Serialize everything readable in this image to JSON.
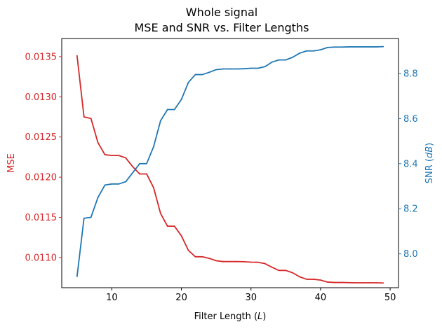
{
  "chart_data": {
    "type": "line",
    "title_lines": [
      "Whole signal",
      "MSE and SNR vs. Filter Lengths"
    ],
    "xlabel": {
      "text": "Filter Length (",
      "var": "L",
      "suffix": ")"
    },
    "xlim": [
      2.8,
      51.2
    ],
    "xticks": [
      10,
      20,
      30,
      40,
      50
    ],
    "grid": false,
    "left_axis": {
      "label": "MSE",
      "color": "#d62728",
      "ylim": [
        0.010625,
        0.013725
      ],
      "ticks": [
        0.011,
        0.0115,
        0.012,
        0.0125,
        0.013,
        0.0135
      ],
      "tick_labels": [
        "0.0110",
        "0.0115",
        "0.0120",
        "0.0125",
        "0.0130",
        "0.0135"
      ]
    },
    "right_axis": {
      "label": {
        "text": "SNR (",
        "var": "dB",
        "suffix": ")"
      },
      "color": "#1f77b4",
      "ylim": [
        7.85,
        8.955
      ],
      "ticks": [
        8.0,
        8.2,
        8.4,
        8.6,
        8.8
      ],
      "tick_labels": [
        "8.0",
        "8.2",
        "8.4",
        "8.6",
        "8.8"
      ]
    },
    "x": [
      5,
      6,
      7,
      8,
      9,
      10,
      11,
      12,
      13,
      14,
      15,
      16,
      17,
      18,
      19,
      20,
      21,
      22,
      23,
      24,
      25,
      26,
      27,
      28,
      29,
      30,
      31,
      32,
      33,
      34,
      35,
      36,
      37,
      38,
      39,
      40,
      41,
      42,
      43,
      44,
      45,
      46,
      47,
      48,
      49
    ],
    "series": [
      {
        "axis": "left",
        "color": "#d62728",
        "values": [
          0.01351,
          0.01275,
          0.01273,
          0.01243,
          0.01228,
          0.01227,
          0.01227,
          0.01224,
          0.01213,
          0.01204,
          0.01204,
          0.01187,
          0.01155,
          0.01139,
          0.01139,
          0.01127,
          0.01109,
          0.01101,
          0.01101,
          0.01099,
          0.01096,
          0.01095,
          0.01095,
          0.01095,
          0.010948,
          0.010943,
          0.010941,
          0.010925,
          0.01088,
          0.01084,
          0.01084,
          0.01081,
          0.01076,
          0.01073,
          0.01073,
          0.01072,
          0.010695,
          0.01069,
          0.01069,
          0.010688,
          0.010686,
          0.010686,
          0.010686,
          0.010686,
          0.010684
        ]
      },
      {
        "axis": "right",
        "color": "#1f77b4",
        "values": [
          7.9,
          8.158,
          8.162,
          8.25,
          8.305,
          8.31,
          8.31,
          8.32,
          8.36,
          8.4,
          8.4,
          8.475,
          8.59,
          8.64,
          8.64,
          8.685,
          8.76,
          8.795,
          8.795,
          8.805,
          8.817,
          8.82,
          8.82,
          8.82,
          8.821,
          8.823,
          8.823,
          8.83,
          8.85,
          8.86,
          8.86,
          8.872,
          8.89,
          8.9,
          8.9,
          8.905,
          8.915,
          8.917,
          8.917,
          8.918,
          8.918,
          8.918,
          8.918,
          8.918,
          8.919
        ]
      }
    ]
  }
}
